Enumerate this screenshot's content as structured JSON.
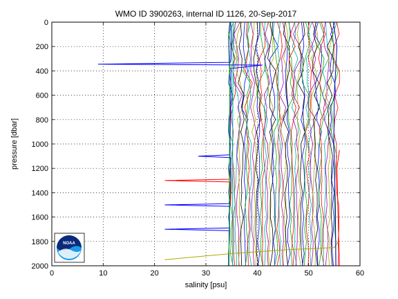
{
  "chart_data": {
    "type": "line",
    "title": "WMO ID 3900263, internal ID 1126, 20-Sep-2017",
    "xlabel": "salinity [psu]",
    "ylabel": "pressure [dbar]",
    "xlim": [
      0,
      60
    ],
    "ylim": [
      2000,
      0
    ],
    "y_reversed": true,
    "xticks": [
      0,
      10,
      20,
      30,
      40,
      50,
      60
    ],
    "yticks": [
      0,
      200,
      400,
      600,
      800,
      1000,
      1200,
      1400,
      1600,
      1800,
      2000
    ],
    "grid": true,
    "legend": "none",
    "logo_text": "NOAA",
    "series": [
      {
        "color": "#0000ff",
        "values": [
          [
            34.8,
            0
          ],
          [
            35.0,
            100
          ],
          [
            34.9,
            300
          ],
          [
            34.8,
            330
          ],
          [
            9.0,
            345
          ],
          [
            41.0,
            352
          ],
          [
            34.9,
            380
          ],
          [
            34.8,
            700
          ],
          [
            34.7,
            1000
          ]
        ]
      },
      {
        "color": "#0000ff",
        "values": [
          [
            34.7,
            1000
          ],
          [
            34.6,
            1090
          ],
          [
            28.5,
            1100
          ],
          [
            34.8,
            1112
          ],
          [
            34.8,
            1400
          ],
          [
            34.5,
            1490
          ],
          [
            22.0,
            1500
          ],
          [
            34.6,
            1512
          ],
          [
            34.6,
            1690
          ],
          [
            22.0,
            1700
          ],
          [
            34.5,
            1712
          ],
          [
            34.5,
            2000
          ]
        ]
      },
      {
        "color": "#ff0000",
        "values": [
          [
            34.7,
            1200
          ],
          [
            34.6,
            1290
          ],
          [
            22.0,
            1300
          ],
          [
            34.7,
            1312
          ],
          [
            34.8,
            1500
          ]
        ]
      },
      {
        "color": "#00aa00",
        "values": [
          [
            34.7,
            0
          ],
          [
            34.6,
            1000
          ],
          [
            34.5,
            2000
          ]
        ]
      },
      {
        "color": "#00aaaa",
        "values": [
          [
            35.3,
            0
          ],
          [
            35.2,
            1000
          ],
          [
            35.2,
            2000
          ]
        ]
      },
      {
        "color": "#aaaa00",
        "values": [
          [
            22.0,
            1950
          ],
          [
            35.0,
            1900
          ],
          [
            45.0,
            1870
          ],
          [
            55.0,
            1850
          ],
          [
            55.8,
            1800
          ]
        ]
      },
      {
        "color": "#ff0000",
        "values": [
          [
            56.0,
            1050
          ],
          [
            55.5,
            1200
          ],
          [
            55.8,
            1700
          ],
          [
            56.0,
            2000
          ]
        ]
      },
      {
        "color": "#0000aa",
        "values": [
          [
            54.8,
            0
          ],
          [
            55.5,
            200
          ],
          [
            55.0,
            600
          ],
          [
            54.9,
            1000
          ],
          [
            55.2,
            1500
          ],
          [
            55.3,
            2000
          ]
        ]
      }
    ]
  }
}
